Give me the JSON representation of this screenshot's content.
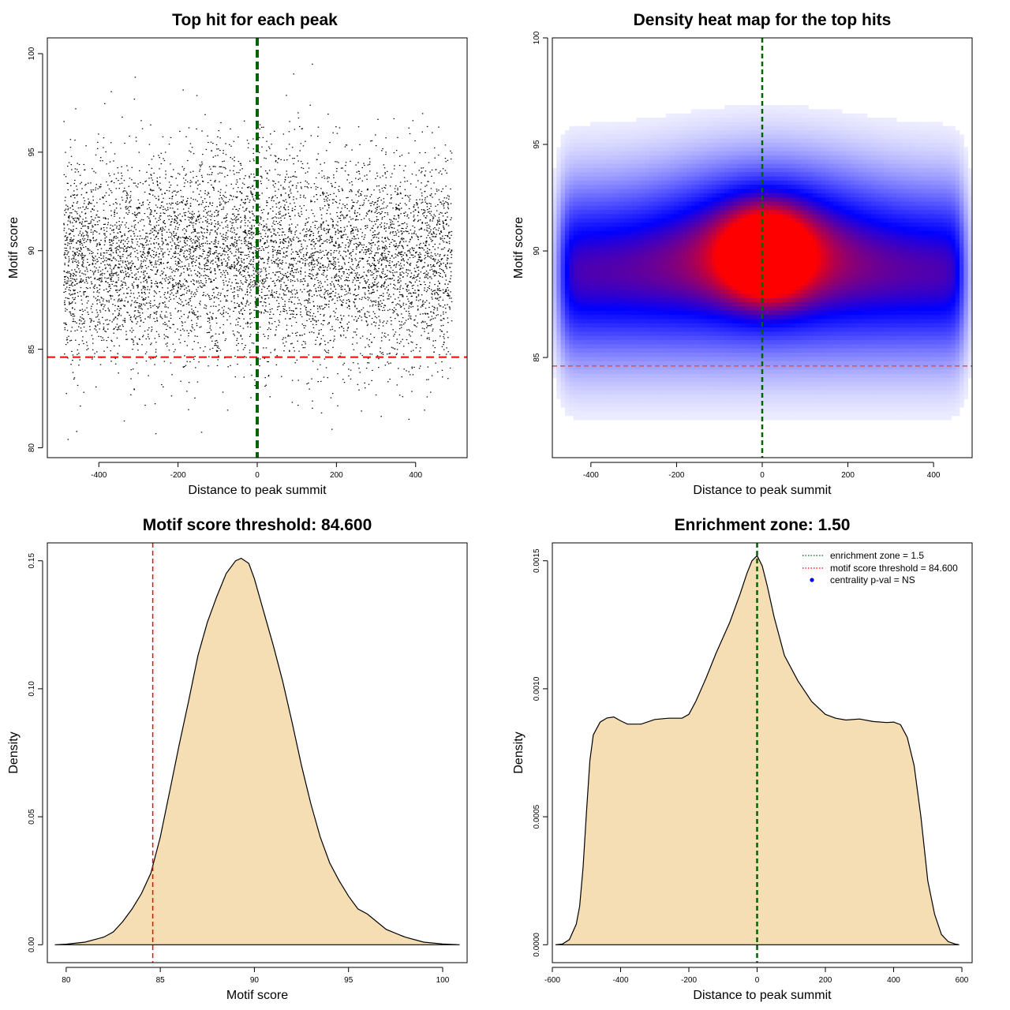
{
  "colors": {
    "points": "#000000",
    "center_line": "#006400",
    "threshold_line": "#ff0000",
    "heat_low": "#ffffff",
    "heat_mid": "#0000ff",
    "heat_high": "#ff0000",
    "density_fill": "#f5deb3",
    "legend_dot": "#0000ff"
  },
  "chart_data": [
    {
      "type": "scatter",
      "title": "Top hit for each peak",
      "xlabel": "Distance to peak summit",
      "ylabel": "Motif score",
      "xlim": [
        -530,
        530
      ],
      "ylim": [
        79.5,
        100.8
      ],
      "xticks": [
        -400,
        -200,
        0,
        200,
        400
      ],
      "yticks": [
        80,
        85,
        90,
        95,
        100
      ],
      "x_range": [
        -490,
        490
      ],
      "score_mean": 89.5,
      "score_sd": 2.6,
      "threshold": 84.6,
      "center": 0
    },
    {
      "type": "heatmap",
      "title": "Density heat map for the top hits",
      "xlabel": "Distance to peak summit",
      "ylabel": "Motif score",
      "xlim": [
        -490,
        490
      ],
      "ylim": [
        80.3,
        100.0
      ],
      "xticks": [
        -400,
        -200,
        0,
        200,
        400
      ],
      "yticks": [
        85,
        90,
        95,
        100
      ],
      "threshold": 84.6,
      "center": 0,
      "peak": {
        "x": 10,
        "y": 89.8
      },
      "band_center": 89.0
    },
    {
      "type": "area",
      "title": "Motif score threshold: 84.600",
      "xlabel": "Motif score",
      "ylabel": "Density",
      "xlim": [
        79.0,
        101.3
      ],
      "ylim": [
        -0.007,
        0.157
      ],
      "xticks": [
        80,
        85,
        90,
        95,
        100
      ],
      "yticks": [
        "0.00",
        "0.05",
        "0.10",
        "0.15"
      ],
      "threshold": 84.6,
      "x": [
        79.4,
        80,
        81,
        82,
        82.5,
        83,
        83.5,
        84,
        84.5,
        85,
        85.5,
        86,
        86.5,
        87,
        87.5,
        88,
        88.5,
        89,
        89.3,
        89.7,
        90,
        90.5,
        91,
        91.5,
        92,
        92.5,
        93,
        93.5,
        94,
        94.5,
        95,
        95.5,
        96,
        96.5,
        97,
        98,
        99,
        100,
        100.9
      ],
      "values": [
        0,
        0.0002,
        0.001,
        0.003,
        0.005,
        0.009,
        0.014,
        0.02,
        0.028,
        0.042,
        0.06,
        0.078,
        0.095,
        0.113,
        0.126,
        0.136,
        0.145,
        0.15,
        0.151,
        0.149,
        0.143,
        0.13,
        0.117,
        0.103,
        0.087,
        0.07,
        0.055,
        0.042,
        0.032,
        0.025,
        0.019,
        0.014,
        0.012,
        0.009,
        0.006,
        0.003,
        0.001,
        0.0003,
        0
      ]
    },
    {
      "type": "area",
      "title": "Enrichment zone: 1.50",
      "xlabel": "Distance to peak summit",
      "ylabel": "Density",
      "xlim": [
        -600,
        630
      ],
      "ylim": [
        -7e-05,
        0.00157
      ],
      "xticks": [
        -600,
        -400,
        -200,
        0,
        200,
        400,
        600
      ],
      "yticks": [
        "0.0000",
        "0.0005",
        "0.0010",
        "0.0015"
      ],
      "center": 0,
      "x": [
        -591,
        -570,
        -550,
        -530,
        -520,
        -510,
        -500,
        -490,
        -480,
        -460,
        -440,
        -420,
        -400,
        -380,
        -340,
        -300,
        -260,
        -220,
        -200,
        -180,
        -150,
        -120,
        -80,
        -50,
        -30,
        -15,
        0,
        15,
        30,
        50,
        80,
        120,
        160,
        200,
        230,
        260,
        300,
        340,
        380,
        400,
        420,
        440,
        460,
        480,
        500,
        520,
        540,
        560,
        580,
        592
      ],
      "values": [
        0,
        3e-06,
        2e-05,
        8e-05,
        0.00015,
        0.0003,
        0.00052,
        0.00072,
        0.00082,
        0.00087,
        0.000886,
        0.00089,
        0.000875,
        0.000862,
        0.000862,
        0.00088,
        0.000885,
        0.000885,
        0.0009,
        0.00095,
        0.00104,
        0.00114,
        0.00126,
        0.00137,
        0.00145,
        0.0015,
        0.00152,
        0.00148,
        0.0014,
        0.00128,
        0.00113,
        0.00103,
        0.00095,
        0.0009,
        0.000885,
        0.000878,
        0.000882,
        0.000872,
        0.000868,
        0.00087,
        0.00086,
        0.00081,
        0.0007,
        0.0005,
        0.00025,
        0.00012,
        4e-05,
        1.2e-05,
        3e-06,
        0
      ]
    }
  ],
  "legend": {
    "items": [
      {
        "label": "enrichment zone = 1.5",
        "kind": "dotted-line",
        "color": "#006400"
      },
      {
        "label": "motif score threshold = 84.600",
        "kind": "dotted-line",
        "color": "#ff0000"
      },
      {
        "label": "centrality p-val = NS",
        "kind": "dot",
        "color": "#0000ff"
      }
    ]
  }
}
